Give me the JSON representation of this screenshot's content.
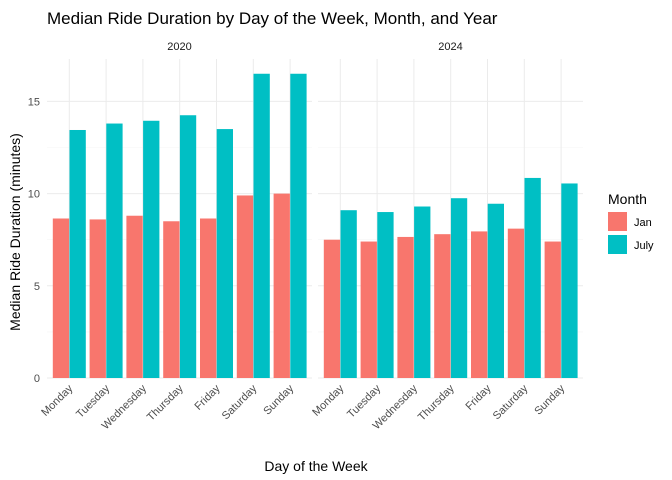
{
  "chart_data": {
    "type": "bar",
    "title": "Median Ride Duration by Day of the Week, Month, and Year",
    "xlabel": "Day of the Week",
    "ylabel": "Median Ride Duration (minutes)",
    "ylim": [
      0,
      17.3
    ],
    "yticks": [
      0,
      5,
      10,
      15
    ],
    "grid": true,
    "legend": {
      "title": "Month",
      "position": "right",
      "entries": [
        {
          "name": "Jan",
          "color": "#F8766D"
        },
        {
          "name": "July",
          "color": "#00BFC4"
        }
      ]
    },
    "categories": [
      "Monday",
      "Tuesday",
      "Wednesday",
      "Thursday",
      "Friday",
      "Saturday",
      "Sunday"
    ],
    "facets": [
      {
        "label": "2020",
        "series": [
          {
            "name": "Jan",
            "values": [
              8.65,
              8.6,
              8.8,
              8.5,
              8.65,
              9.9,
              10.0
            ]
          },
          {
            "name": "July",
            "values": [
              13.45,
              13.8,
              13.95,
              14.25,
              13.5,
              16.5,
              16.5
            ]
          }
        ]
      },
      {
        "label": "2024",
        "series": [
          {
            "name": "Jan",
            "values": [
              7.5,
              7.4,
              7.65,
              7.8,
              7.95,
              8.1,
              7.4
            ]
          },
          {
            "name": "July",
            "values": [
              9.1,
              9.0,
              9.3,
              9.75,
              9.45,
              10.85,
              10.55
            ]
          }
        ]
      }
    ]
  }
}
